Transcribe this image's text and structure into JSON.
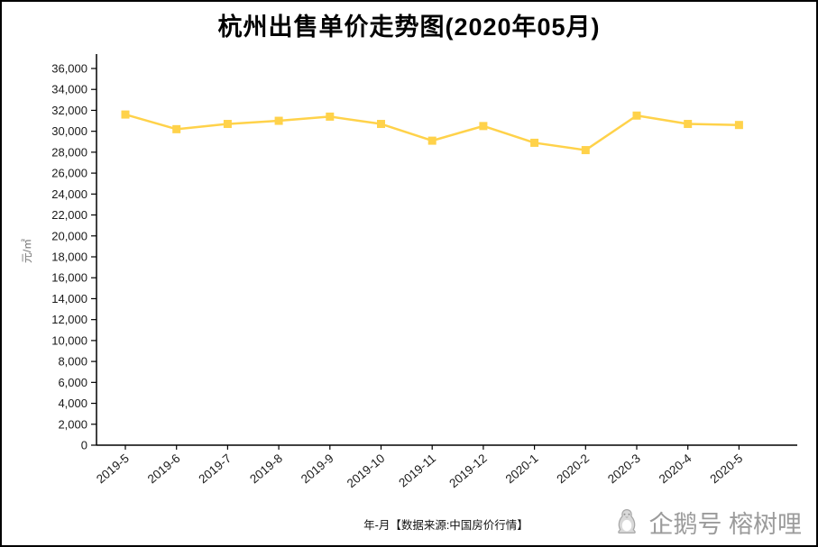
{
  "title": "杭州出售单价走势图(2020年05月)",
  "chart_data": {
    "type": "line",
    "categories": [
      "2019-5",
      "2019-6",
      "2019-7",
      "2019-8",
      "2019-9",
      "2019-10",
      "2019-11",
      "2019-12",
      "2020-1",
      "2020-2",
      "2020-3",
      "2020-4",
      "2020-5"
    ],
    "values": [
      31600,
      30200,
      30700,
      31000,
      31400,
      30700,
      29100,
      30500,
      28900,
      28200,
      31500,
      30700,
      30600
    ],
    "title": "杭州出售单价走势图(2020年05月)",
    "xlabel": "年-月【数据来源:中国房价行情】",
    "ylabel": "元/㎡",
    "ylim": [
      0,
      36000
    ],
    "ytick_step": 2000,
    "grid": false,
    "legend": "none",
    "line_color": "#FFD24A",
    "marker": "square",
    "axis_color": "#000000",
    "tick_label_color": "#1a1a1a"
  },
  "watermark": {
    "icon": "penguin-icon",
    "text": "企鹅号 榕树哩"
  }
}
